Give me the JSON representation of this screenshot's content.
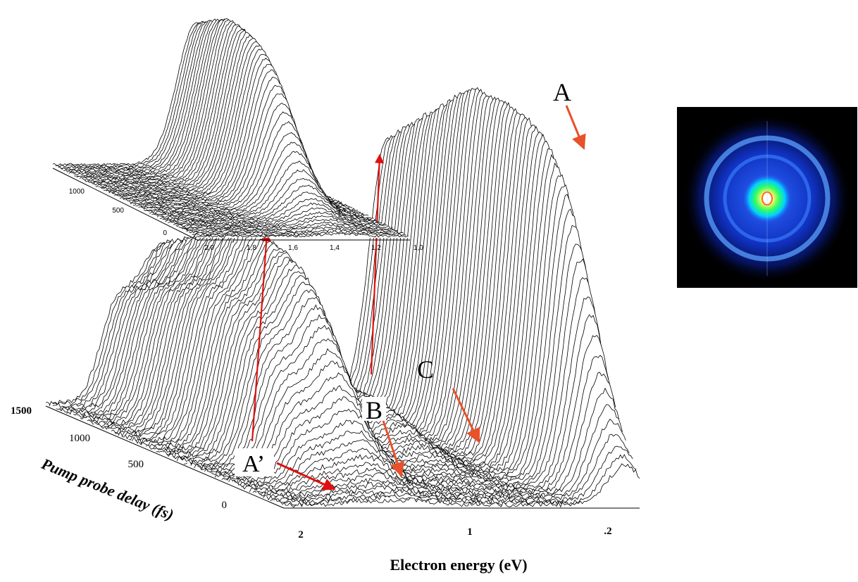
{
  "chart_data": [
    {
      "type": "waterfall-3d",
      "xlabel": "Electron energy (eV)",
      "ylabel": "Pump probe delay (fs)",
      "x_tick_labels": [
        "2",
        "1",
        ".2"
      ],
      "y_tick_labels": [
        "0",
        "500",
        "1000",
        "1500"
      ],
      "x_range_ev": [
        0.2,
        2.2
      ],
      "delay_range_fs": [
        -100,
        1600
      ],
      "peaks": [
        {
          "label": "A",
          "energy_ev": 0.28,
          "rel_height": 1.0,
          "width_ev": 0.14,
          "rise_fs": 150
        },
        {
          "label": "B",
          "energy_ev": 1.55,
          "rel_height": 0.6,
          "width_ev": 0.22,
          "rise_fs": 350
        },
        {
          "label": "C",
          "energy_ev": 0.98,
          "rel_height": 0.15,
          "width_ev": 0.2,
          "rise_fs": 500
        },
        {
          "label": "A’",
          "energy_ev": 1.82,
          "rel_height": 0.25,
          "width_ev": 0.12,
          "rise_fs": 350
        }
      ],
      "annotations": [
        "A",
        "B",
        "C",
        "A’"
      ]
    },
    {
      "type": "waterfall-3d",
      "role": "inset",
      "x_tick_labels": [
        "2,0",
        "1,8",
        "1,6",
        "1,4",
        "1,2",
        "1,0"
      ],
      "y_tick_labels": [
        "0",
        "500",
        "1000"
      ],
      "x_range_ev": [
        1.0,
        2.0
      ],
      "delay_range_fs": [
        -100,
        1300
      ],
      "peak": {
        "energy_ev": 1.32,
        "rel_height": 1.0,
        "width_ev": 0.13,
        "rise_fs": 400
      }
    }
  ],
  "colors": {
    "trace": "#000000",
    "arrow_main": "#e8512a",
    "arrow_link": "#e01010",
    "detector_bg": "#000000",
    "detector_ring": "#1f5fff"
  },
  "detector_image": {
    "description_icon": "velocity-map-image"
  }
}
